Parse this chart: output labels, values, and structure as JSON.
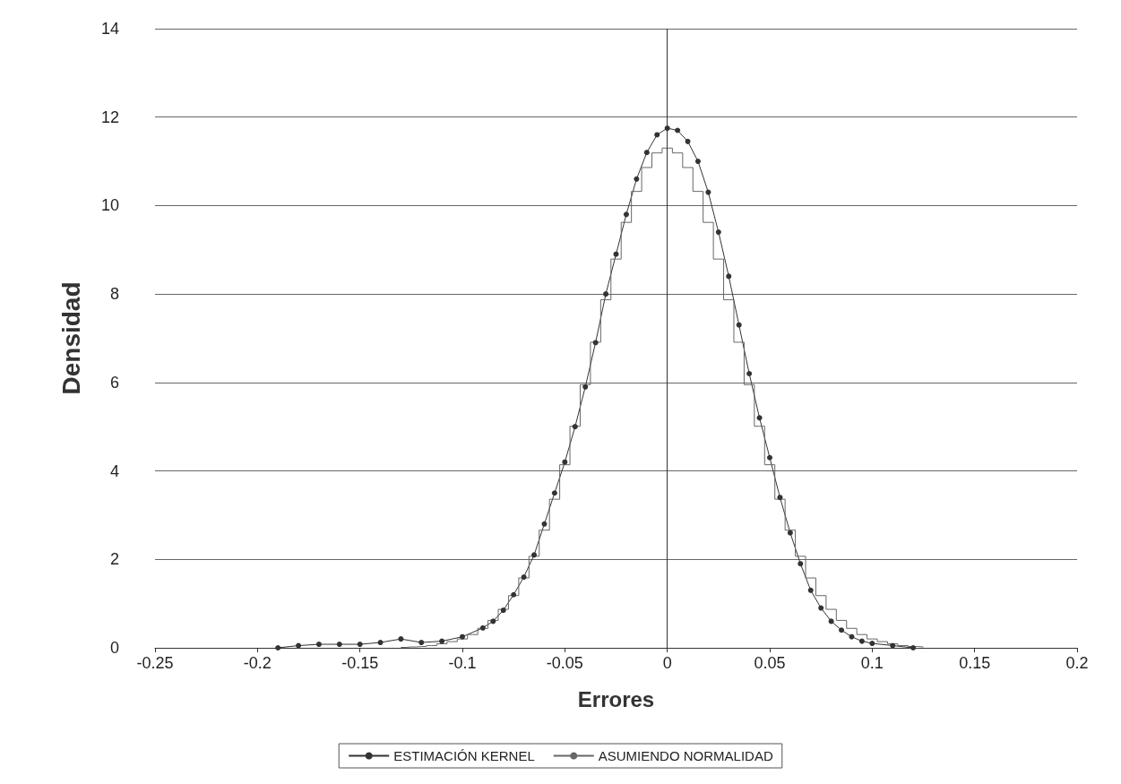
{
  "chart_data": {
    "type": "line",
    "xlabel": "Errores",
    "ylabel": "Densidad",
    "xlim": [
      -0.25,
      0.2
    ],
    "xticks": [
      -0.25,
      -0.2,
      -0.15,
      -0.1,
      -0.05,
      0,
      0.05,
      0.1,
      0.15,
      0.2
    ],
    "ylim": [
      0,
      14
    ],
    "yticks": [
      0,
      2,
      4,
      6,
      8,
      10,
      12,
      14
    ],
    "grid": "y",
    "legend": "bottom",
    "ref_lines": [
      {
        "axis": "x",
        "value": 0,
        "color": "#333333"
      }
    ],
    "series": [
      {
        "name": "ESTIMACIÓN KERNEL",
        "marker": "circle",
        "color": "#333333",
        "x": [
          -0.19,
          -0.18,
          -0.17,
          -0.16,
          -0.15,
          -0.14,
          -0.13,
          -0.12,
          -0.11,
          -0.1,
          -0.09,
          -0.085,
          -0.08,
          -0.075,
          -0.07,
          -0.065,
          -0.06,
          -0.055,
          -0.05,
          -0.045,
          -0.04,
          -0.035,
          -0.03,
          -0.025,
          -0.02,
          -0.015,
          -0.01,
          -0.005,
          0,
          0.005,
          0.01,
          0.015,
          0.02,
          0.025,
          0.03,
          0.035,
          0.04,
          0.045,
          0.05,
          0.055,
          0.06,
          0.065,
          0.07,
          0.075,
          0.08,
          0.085,
          0.09,
          0.095,
          0.1,
          0.11,
          0.12
        ],
        "values": [
          0.0,
          0.05,
          0.08,
          0.08,
          0.08,
          0.12,
          0.2,
          0.12,
          0.15,
          0.25,
          0.45,
          0.6,
          0.85,
          1.2,
          1.6,
          2.1,
          2.8,
          3.5,
          4.2,
          5.0,
          5.9,
          6.9,
          8.0,
          8.9,
          9.8,
          10.6,
          11.2,
          11.6,
          11.75,
          11.7,
          11.45,
          11.0,
          10.3,
          9.4,
          8.4,
          7.3,
          6.2,
          5.2,
          4.3,
          3.4,
          2.6,
          1.9,
          1.3,
          0.9,
          0.6,
          0.4,
          0.25,
          0.15,
          0.1,
          0.05,
          0.0
        ]
      },
      {
        "name": "ASUMIENDO NORMALIDAD",
        "type": "step",
        "marker": "none",
        "color": "#666666",
        "x": [
          -0.13,
          -0.125,
          -0.12,
          -0.115,
          -0.11,
          -0.105,
          -0.1,
          -0.095,
          -0.09,
          -0.085,
          -0.08,
          -0.075,
          -0.07,
          -0.065,
          -0.06,
          -0.055,
          -0.05,
          -0.045,
          -0.04,
          -0.035,
          -0.03,
          -0.025,
          -0.02,
          -0.015,
          -0.01,
          -0.005,
          0,
          0.005,
          0.01,
          0.015,
          0.02,
          0.025,
          0.03,
          0.035,
          0.04,
          0.045,
          0.05,
          0.055,
          0.06,
          0.065,
          0.07,
          0.075,
          0.08,
          0.085,
          0.09,
          0.095,
          0.1,
          0.105,
          0.11,
          0.115,
          0.12,
          0.125
        ],
        "values": [
          0.01,
          0.02,
          0.03,
          0.05,
          0.09,
          0.14,
          0.2,
          0.3,
          0.44,
          0.62,
          0.87,
          1.18,
          1.58,
          2.07,
          2.66,
          3.36,
          4.14,
          5.01,
          5.95,
          6.91,
          7.87,
          8.79,
          9.62,
          10.32,
          10.86,
          11.19,
          11.3,
          11.19,
          10.86,
          10.32,
          9.62,
          8.79,
          7.87,
          6.91,
          5.95,
          5.01,
          4.14,
          3.36,
          2.66,
          2.07,
          1.58,
          1.18,
          0.87,
          0.62,
          0.44,
          0.3,
          0.2,
          0.14,
          0.09,
          0.05,
          0.03,
          0.02
        ]
      }
    ]
  }
}
